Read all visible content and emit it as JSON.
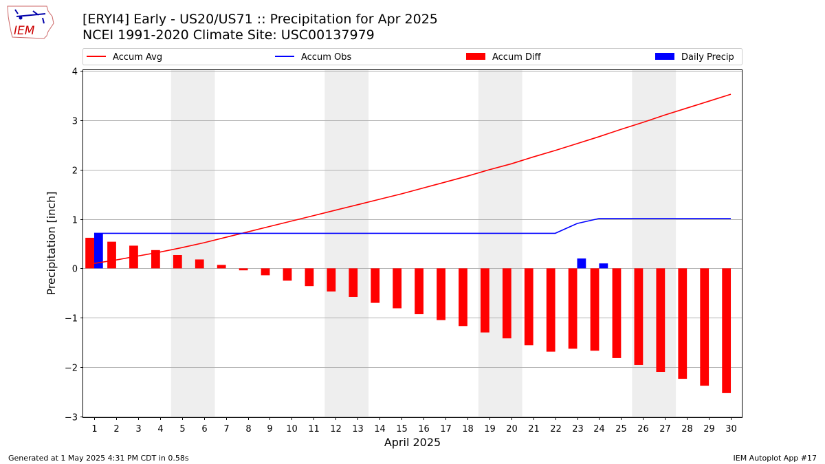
{
  "header": {
    "title_line1": "[ERYI4] Early - US20/US71 :: Precipitation for Apr 2025",
    "title_line2": "NCEI 1991-2020 Climate Site: USC00137979"
  },
  "logo": {
    "text": "IEM",
    "icon": "iem-iowa-map-logo",
    "color": "#cc0000"
  },
  "footer": {
    "left": "Generated at 1 May 2025 4:31 PM CDT in 0.58s",
    "right": "IEM Autoplot App #17"
  },
  "chart_data": {
    "type": "bar",
    "xlabel": "April 2025",
    "ylabel": "Precipitation [inch]",
    "ylim": [
      -3.02,
      4.02
    ],
    "yticks": [
      -3,
      -2,
      -1,
      0,
      1,
      2,
      3,
      4
    ],
    "ytick_labels": [
      "−3",
      "−2",
      "−1",
      "0",
      "1",
      "2",
      "3",
      "4"
    ],
    "xlim": [
      0.5,
      30.5
    ],
    "x": [
      1,
      2,
      3,
      4,
      5,
      6,
      7,
      8,
      9,
      10,
      11,
      12,
      13,
      14,
      15,
      16,
      17,
      18,
      19,
      20,
      21,
      22,
      23,
      24,
      25,
      26,
      27,
      28,
      29,
      30
    ],
    "grid": "horizontal",
    "legend_position": "top",
    "weekend_shading": [
      [
        4.5,
        6.5
      ],
      [
        11.5,
        13.5
      ],
      [
        18.5,
        20.5
      ],
      [
        25.5,
        27.5
      ]
    ],
    "series": [
      {
        "name": "Accum Avg",
        "kind": "line",
        "color": "#ff0000",
        "values": [
          0.1,
          0.17,
          0.25,
          0.33,
          0.42,
          0.52,
          0.63,
          0.74,
          0.85,
          0.96,
          1.07,
          1.18,
          1.29,
          1.4,
          1.51,
          1.63,
          1.75,
          1.87,
          2.0,
          2.12,
          2.26,
          2.39,
          2.53,
          2.67,
          2.82,
          2.96,
          3.11,
          3.25,
          3.39,
          3.53
        ]
      },
      {
        "name": "Accum Obs",
        "kind": "line",
        "color": "#0000ff",
        "values": [
          0.71,
          0.71,
          0.71,
          0.71,
          0.71,
          0.71,
          0.71,
          0.71,
          0.71,
          0.71,
          0.71,
          0.71,
          0.71,
          0.71,
          0.71,
          0.71,
          0.71,
          0.71,
          0.71,
          0.71,
          0.71,
          0.71,
          0.91,
          1.01,
          1.01,
          1.01,
          1.01,
          1.01,
          1.01,
          1.01
        ]
      },
      {
        "name": "Accum Diff",
        "kind": "bar",
        "color": "#ff0000",
        "offset": -0.2,
        "values": [
          0.62,
          0.54,
          0.46,
          0.37,
          0.27,
          0.18,
          0.07,
          -0.04,
          -0.14,
          -0.25,
          -0.36,
          -0.47,
          -0.58,
          -0.7,
          -0.81,
          -0.93,
          -1.05,
          -1.17,
          -1.3,
          -1.42,
          -1.56,
          -1.69,
          -1.63,
          -1.67,
          -1.82,
          -1.96,
          -2.1,
          -2.24,
          -2.38,
          -2.53
        ]
      },
      {
        "name": "Daily Precip",
        "kind": "bar",
        "color": "#0000ff",
        "offset": 0.2,
        "values": [
          0.71,
          0,
          0,
          0,
          0,
          0,
          0,
          0,
          0,
          0,
          0,
          0,
          0,
          0,
          0,
          0,
          0,
          0,
          0,
          0,
          0,
          0,
          0.2,
          0.1,
          0,
          0,
          0,
          0,
          0,
          0
        ]
      }
    ]
  }
}
